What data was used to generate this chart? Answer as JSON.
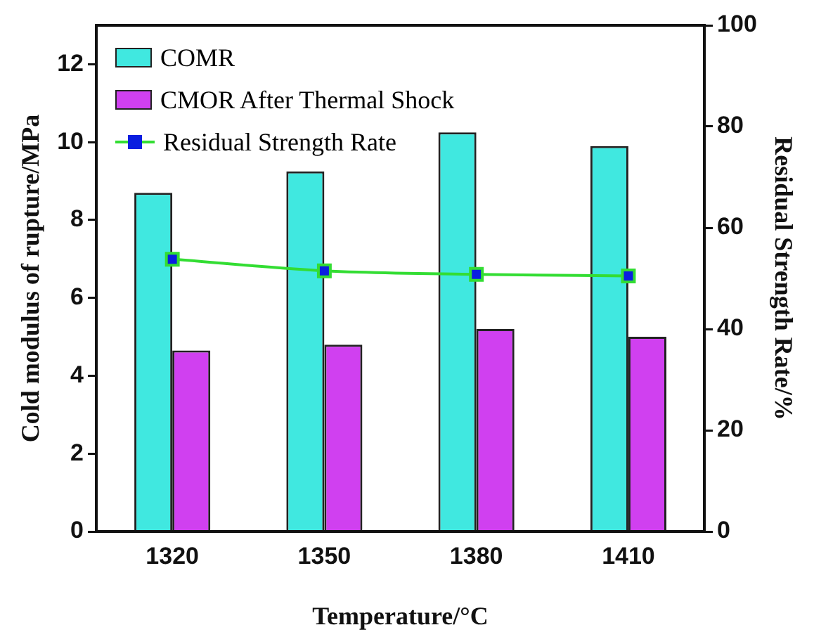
{
  "chart_data": {
    "type": "bar",
    "xlabel": "Temperature/°C",
    "ylabel": "Cold modulus of rupture/MPa",
    "y2label": "Residual Strength Rate/%",
    "categories": [
      "1320",
      "1350",
      "1380",
      "1410"
    ],
    "series": [
      {
        "name": "COMR",
        "color": "#40e8e0",
        "values": [
          8.7,
          9.25,
          10.25,
          9.9
        ]
      },
      {
        "name": "CMOR After Thermal Shock",
        "color": "#d040f0",
        "values": [
          4.65,
          4.8,
          5.2,
          5.0
        ]
      },
      {
        "name": "Residual Strength Rate",
        "type": "line",
        "axis": "y2",
        "color": "#33dd33",
        "marker": "square",
        "values": [
          53.8,
          51.5,
          50.8,
          50.5
        ]
      }
    ],
    "ylim": [
      0,
      13
    ],
    "yticks": [
      0,
      2,
      4,
      6,
      8,
      10,
      12
    ],
    "y2lim": [
      0,
      100
    ],
    "y2ticks": [
      0,
      20,
      40,
      60,
      80,
      100
    ],
    "grid": false,
    "legend": "top left"
  }
}
